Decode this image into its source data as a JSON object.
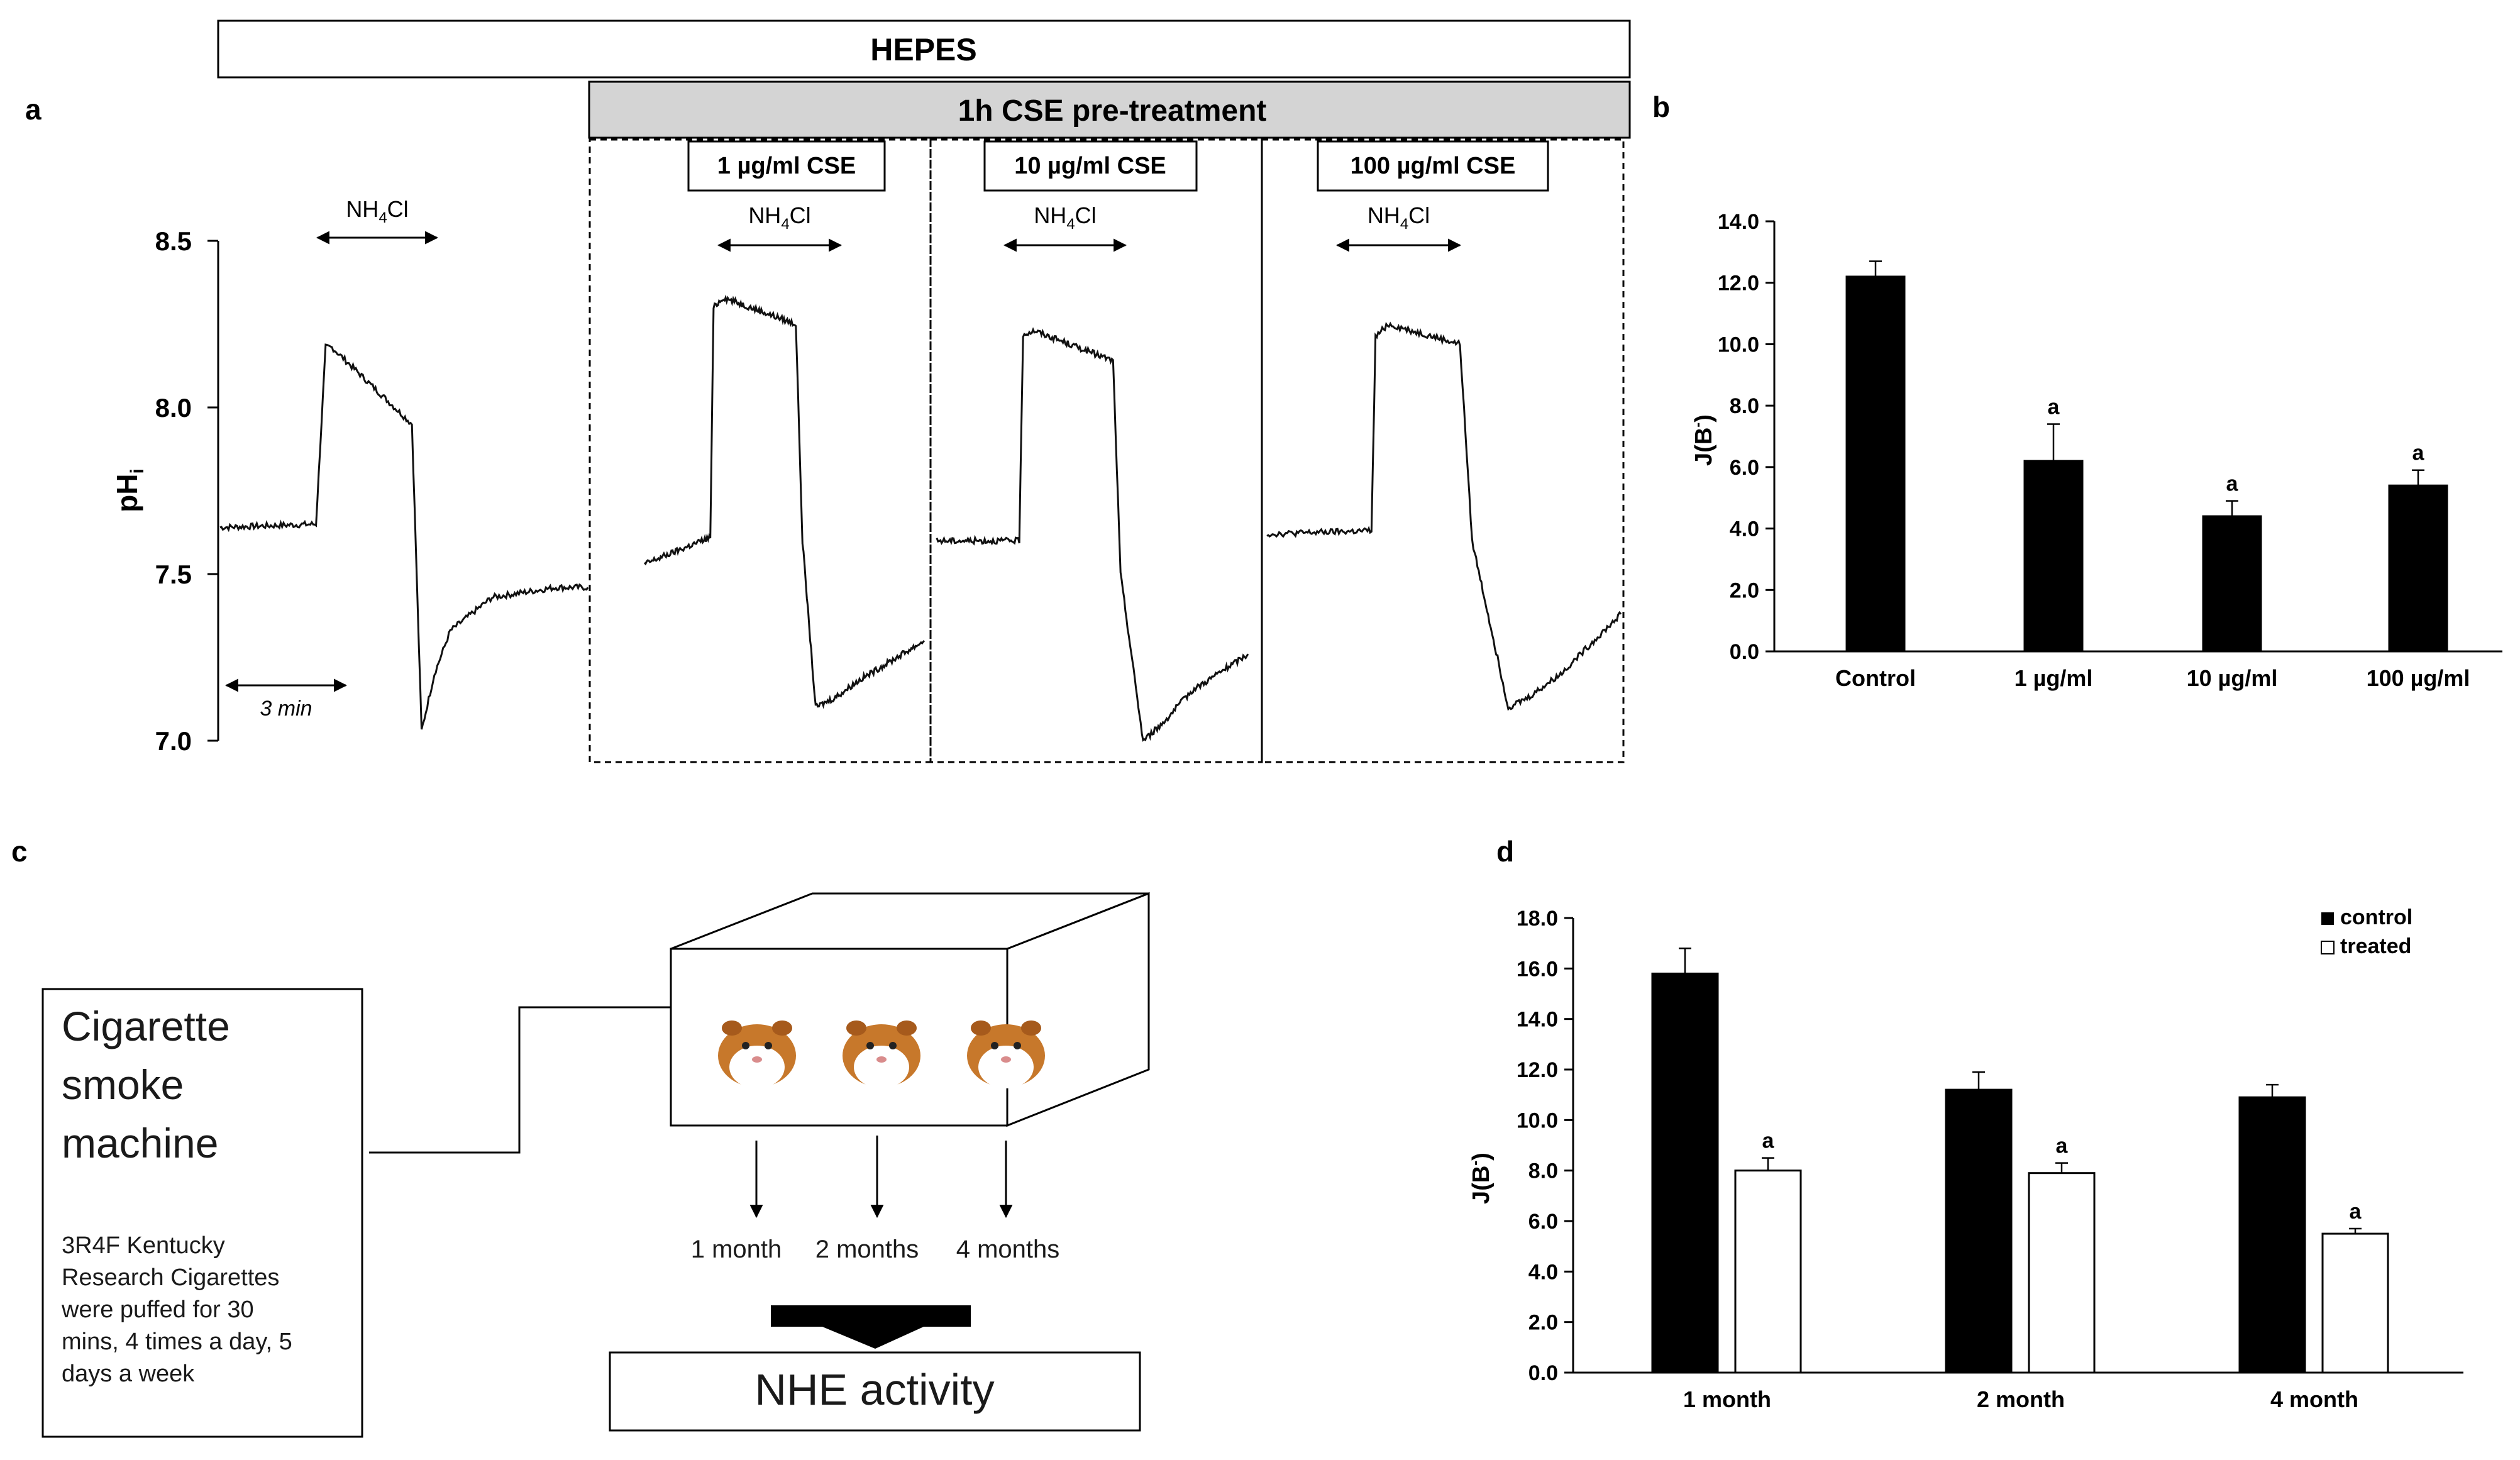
{
  "panel_labels": {
    "a": "a",
    "b": "b",
    "c": "c",
    "d": "d"
  },
  "headers": {
    "hepes": "HEPES",
    "pretreatment": "1h CSE pre-treatment"
  },
  "conditions": [
    {
      "label": "1 µg/ml CSE"
    },
    {
      "label": "10 µg/ml CSE"
    },
    {
      "label": "100 µg/ml CSE"
    }
  ],
  "nh4cl": {
    "prefix": "NH",
    "sub": "4",
    "suffix": "Cl"
  },
  "scale_bar": "3 min",
  "axes": {
    "a_ylabel_main": "pH",
    "a_ylabel_sub": "i",
    "j_main": "J(B",
    "j_sup": "-",
    "j_close": ")"
  },
  "chart_data": [
    {
      "id": "a",
      "type": "line",
      "title": "",
      "ylabel": "pHi",
      "ylim": [
        7.0,
        8.5
      ],
      "yticks": [
        "8.5",
        "8.0",
        "7.5",
        "7.0"
      ],
      "yticks_values": [
        8.5,
        8.0,
        7.5,
        7.0
      ],
      "time_unit": "min",
      "traces": [
        {
          "name": "HEPES control",
          "t": [
            0,
            3.0,
            3.3,
            3.5,
            6.0,
            6.3,
            6.7,
            7.2,
            8.5,
            10.5,
            11.5
          ],
          "ph": [
            7.64,
            7.65,
            8.18,
            8.18,
            7.95,
            7.03,
            7.2,
            7.33,
            7.43,
            7.46,
            7.46
          ]
        },
        {
          "name": "1 µg/ml CSE",
          "t": [
            0,
            2.0,
            2.1,
            2.4,
            4.6,
            4.8,
            5.2,
            5.8,
            6.5,
            8.5
          ],
          "ph": [
            7.53,
            7.61,
            8.3,
            8.33,
            8.25,
            7.6,
            7.1,
            7.13,
            7.18,
            7.3
          ]
        },
        {
          "name": "10 µg/ml CSE",
          "t": [
            0,
            2.2,
            2.3,
            2.6,
            4.7,
            4.9,
            5.5,
            6.0,
            6.8,
            8.3
          ],
          "ph": [
            7.6,
            7.6,
            8.22,
            8.23,
            8.14,
            7.5,
            7.0,
            7.05,
            7.15,
            7.26
          ]
        },
        {
          "name": "100 µg/ml CSE",
          "t": [
            0,
            2.6,
            2.7,
            3.0,
            4.8,
            5.1,
            6.0,
            6.5,
            7.3,
            8.8
          ],
          "ph": [
            7.62,
            7.63,
            8.21,
            8.25,
            8.19,
            7.6,
            7.1,
            7.13,
            7.2,
            7.38
          ]
        }
      ]
    },
    {
      "id": "b",
      "type": "bar",
      "title": "",
      "ylabel": "J(B-)",
      "ylim": [
        0,
        14
      ],
      "yticks": [
        "14.0",
        "12.0",
        "10.0",
        "8.0",
        "6.0",
        "4.0",
        "2.0",
        "0.0"
      ],
      "yticks_values": [
        14,
        12,
        10,
        8,
        6,
        4,
        2,
        0
      ],
      "categories": [
        "Control",
        "1 µg/ml",
        "10 µg/ml",
        "100 µg/ml"
      ],
      "values": [
        12.2,
        6.2,
        4.4,
        5.4
      ],
      "errors": [
        0.5,
        1.2,
        0.5,
        0.5
      ],
      "significance": [
        "",
        "a",
        "a",
        "a"
      ]
    },
    {
      "id": "d",
      "type": "bar",
      "title": "",
      "ylabel": "J(B-)",
      "ylim": [
        0,
        18
      ],
      "yticks": [
        "18.0",
        "16.0",
        "14.0",
        "12.0",
        "10.0",
        "8.0",
        "6.0",
        "4.0",
        "2.0",
        "0.0"
      ],
      "yticks_values": [
        18,
        16,
        14,
        12,
        10,
        8,
        6,
        4,
        2,
        0
      ],
      "categories": [
        "1 month",
        "2 month",
        "4 month"
      ],
      "legend": {
        "position": "top-right",
        "entries": [
          "control",
          "treated"
        ]
      },
      "series": [
        {
          "name": "control",
          "values": [
            15.8,
            11.2,
            10.9
          ],
          "errors": [
            1.0,
            0.7,
            0.5
          ],
          "significance": [
            "",
            "",
            ""
          ]
        },
        {
          "name": "treated",
          "values": [
            8.0,
            7.9,
            5.5
          ],
          "errors": [
            0.5,
            0.4,
            0.2
          ],
          "significance": [
            "a",
            "a",
            "a"
          ]
        }
      ]
    }
  ],
  "diagram_c": {
    "machine_title_lines": [
      "Cigarette",
      "smoke",
      "machine"
    ],
    "machine_desc_lines": [
      "3R4F Kentucky",
      "Research Cigarettes",
      "were puffed  for 30",
      "mins, 4 times a day, 5",
      "days a week"
    ],
    "timepoints": [
      "1 month",
      "2 months",
      "4 months"
    ],
    "result": "NHE activity"
  }
}
